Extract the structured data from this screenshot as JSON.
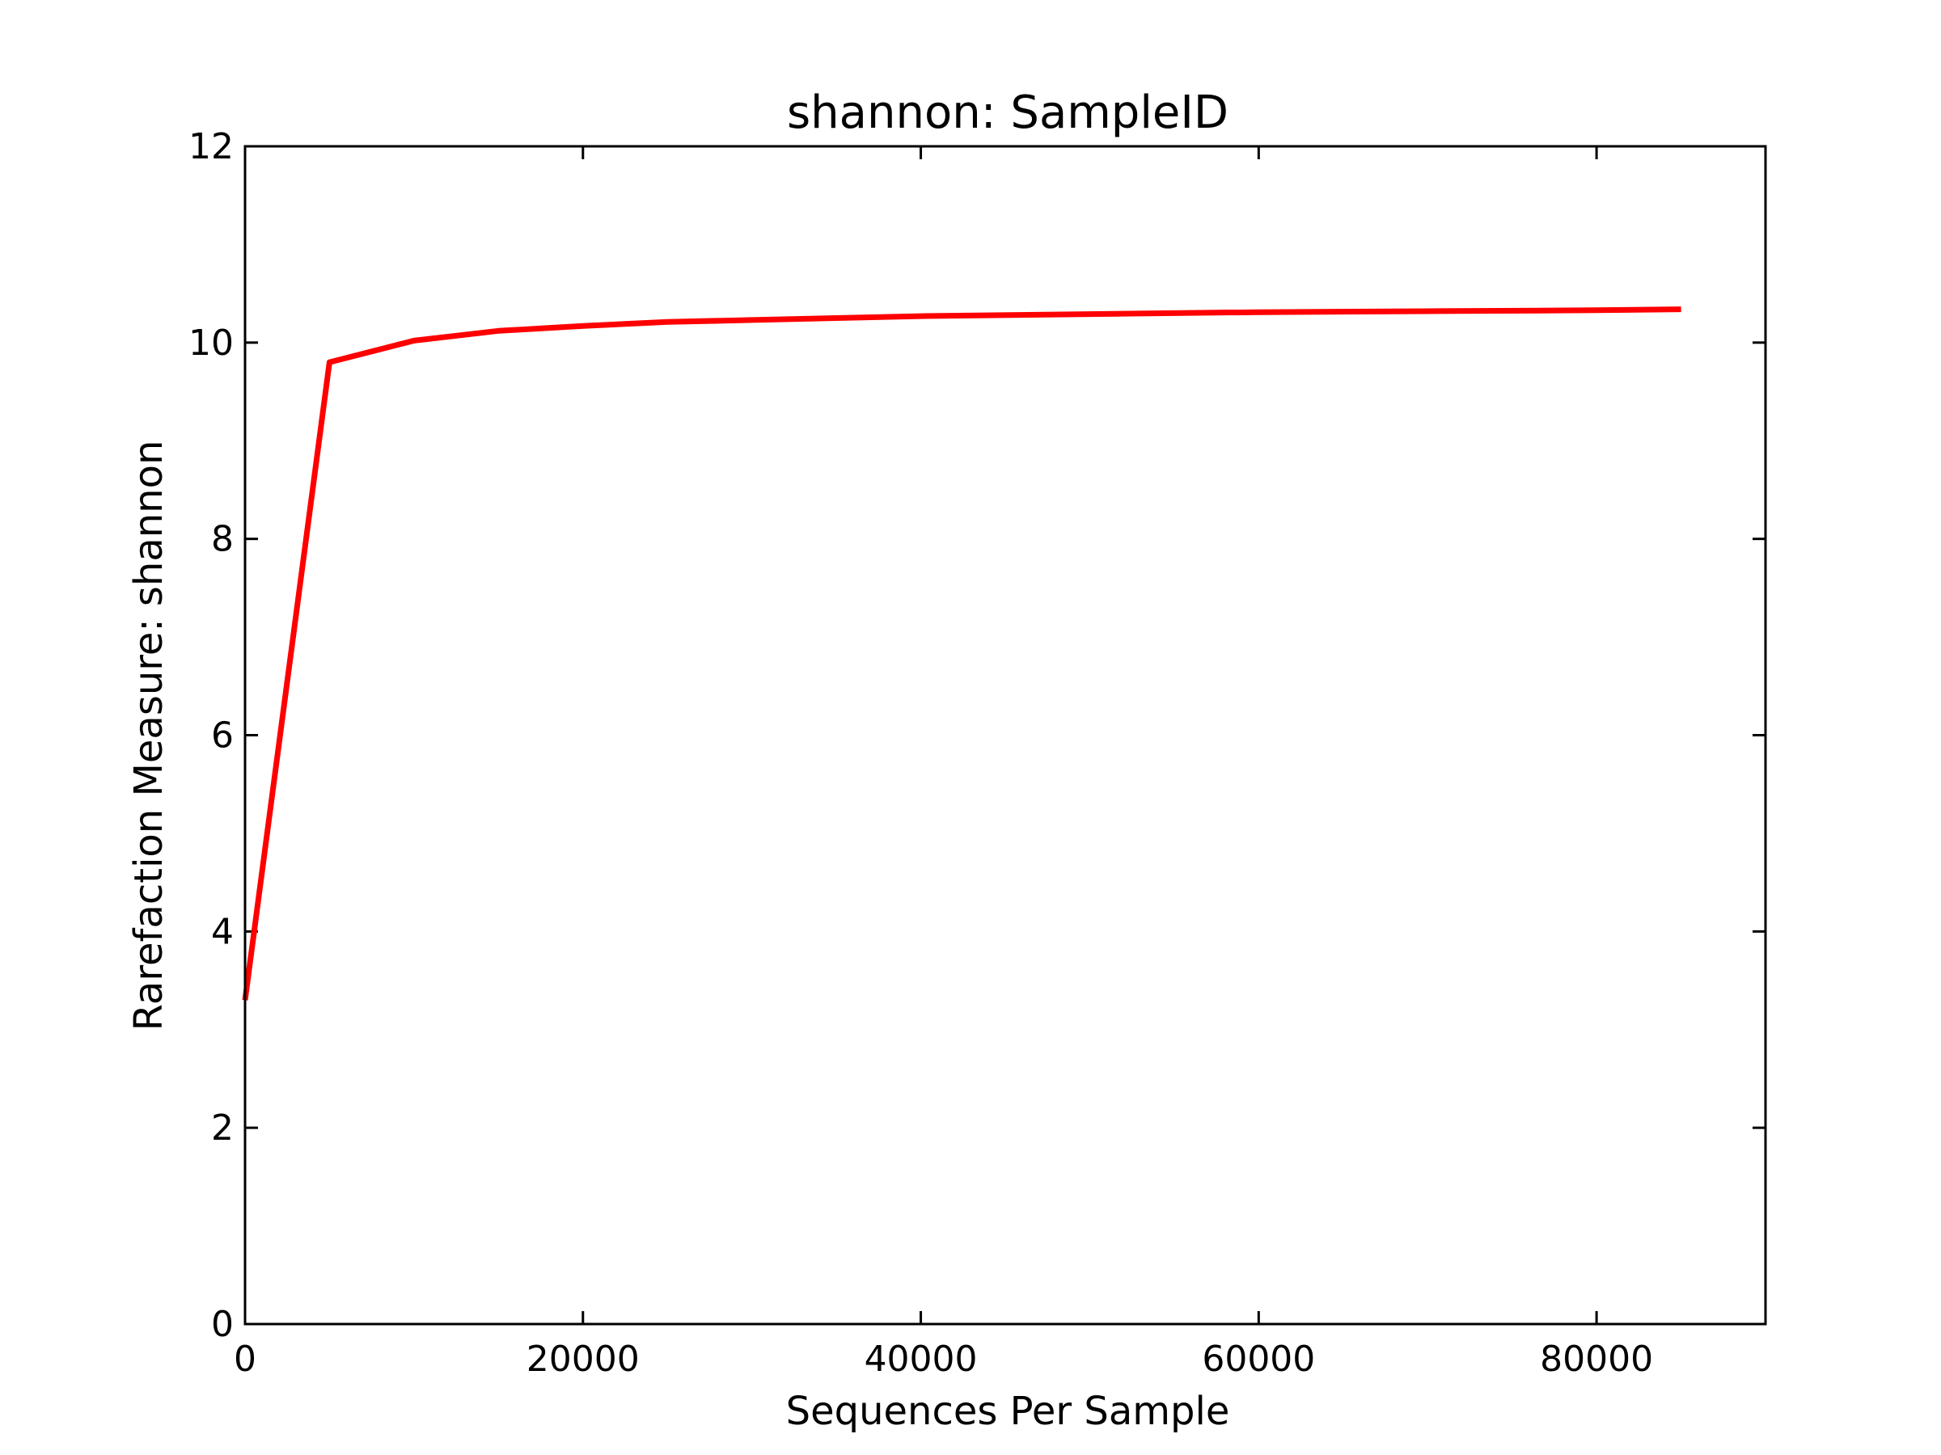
{
  "chart_data": {
    "type": "line",
    "title": "shannon: SampleID",
    "xlabel": "Sequences Per Sample",
    "ylabel": "Rarefaction Measure: shannon",
    "xlim": [
      0,
      90000
    ],
    "ylim": [
      0,
      12
    ],
    "xticks": [
      "0",
      "20000",
      "40000",
      "60000",
      "80000"
    ],
    "yticks": [
      "0",
      "2",
      "4",
      "6",
      "8",
      "10",
      "12"
    ],
    "grid": false,
    "series": [
      {
        "color": "#ff0000",
        "x": [
          1,
          5000,
          10000,
          15000,
          20000,
          25000,
          30000,
          40000,
          50000,
          60000,
          70000,
          80000,
          85000
        ],
        "y": [
          3.3,
          9.8,
          10.02,
          10.12,
          10.17,
          10.21,
          10.23,
          10.27,
          10.29,
          10.31,
          10.32,
          10.33,
          10.34
        ]
      }
    ]
  }
}
